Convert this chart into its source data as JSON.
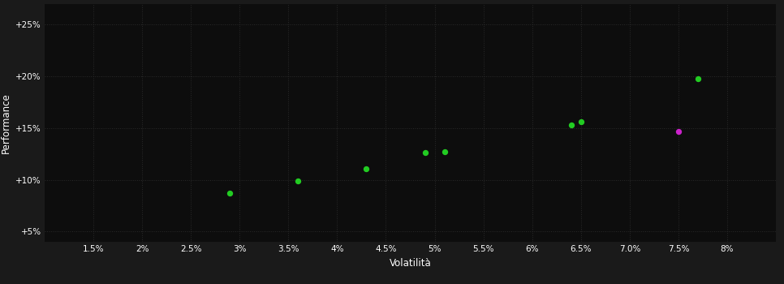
{
  "background_color": "#1a1a1a",
  "plot_bg_color": "#0d0d0d",
  "grid_color": "#2a2a2a",
  "xlabel": "Volatilità",
  "ylabel": "Performance",
  "xlim": [
    0.01,
    0.085
  ],
  "ylim": [
    0.04,
    0.27
  ],
  "xticks": [
    0.015,
    0.02,
    0.025,
    0.03,
    0.035,
    0.04,
    0.045,
    0.05,
    0.055,
    0.06,
    0.065,
    0.07,
    0.075,
    0.08
  ],
  "yticks": [
    0.05,
    0.1,
    0.15,
    0.2,
    0.25
  ],
  "green_points": [
    [
      0.029,
      0.087
    ],
    [
      0.036,
      0.099
    ],
    [
      0.043,
      0.111
    ],
    [
      0.049,
      0.126
    ],
    [
      0.051,
      0.127
    ],
    [
      0.064,
      0.153
    ],
    [
      0.065,
      0.156
    ],
    [
      0.077,
      0.198
    ]
  ],
  "magenta_points": [
    [
      0.075,
      0.147
    ]
  ],
  "green_color": "#22cc22",
  "magenta_color": "#cc22cc",
  "marker_size": 28
}
